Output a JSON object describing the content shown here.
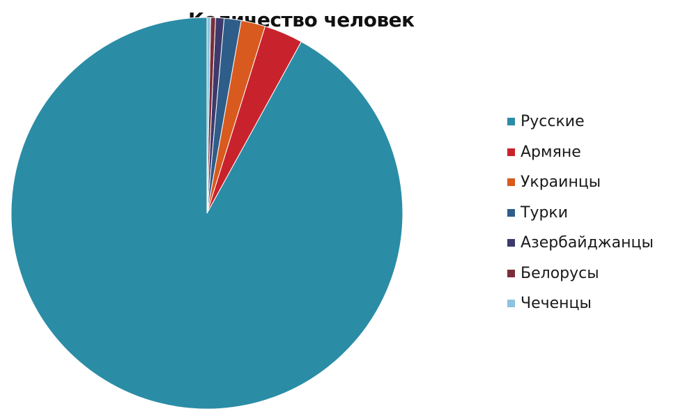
{
  "chart_data": {
    "type": "pie",
    "title": "Количество человек",
    "start_angle_deg": 0,
    "direction": "counterclockwise",
    "legend_position": "right",
    "slices": [
      {
        "label": "Русские",
        "value": 92.0,
        "color": "#2b8ca6"
      },
      {
        "label": "Армяне",
        "value": 3.2,
        "color": "#c8232c"
      },
      {
        "label": "Украинцы",
        "value": 2.0,
        "color": "#d85a1f"
      },
      {
        "label": "Турки",
        "value": 1.4,
        "color": "#2f5d8a"
      },
      {
        "label": "Азербайджанцы",
        "value": 0.7,
        "color": "#3d3a6b"
      },
      {
        "label": "Белорусы",
        "value": 0.4,
        "color": "#7a2e3a"
      },
      {
        "label": "Чеченцы",
        "value": 0.3,
        "color": "#8cc3de"
      }
    ]
  }
}
